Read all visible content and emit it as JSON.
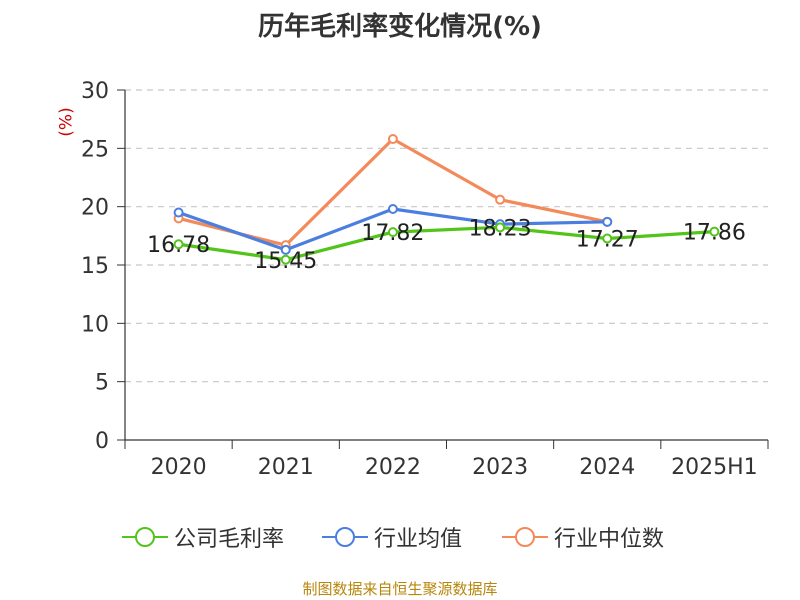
{
  "chart_data": {
    "type": "line",
    "title": "历年毛利率变化情况(%)",
    "unit": "(%)",
    "categories": [
      "2020",
      "2021",
      "2022",
      "2023",
      "2024",
      "2025H1"
    ],
    "ylim": [
      0,
      30
    ],
    "yticks": [
      0,
      5,
      10,
      15,
      20,
      25,
      30
    ],
    "grid": true,
    "legend_position": "bottom",
    "series": [
      {
        "name": "公司毛利率",
        "color": "#52c41a",
        "values": [
          16.78,
          15.45,
          17.82,
          18.23,
          17.27,
          17.86
        ],
        "labels": [
          "16.78",
          "15.45",
          "17.82",
          "18.23",
          "17.27",
          "17.86"
        ]
      },
      {
        "name": "行业均值",
        "color": "#4a7fe0",
        "values": [
          19.5,
          16.3,
          19.8,
          18.5,
          18.7,
          null
        ]
      },
      {
        "name": "行业中位数",
        "color": "#f4895a",
        "values": [
          19.0,
          16.7,
          25.8,
          20.6,
          18.7,
          null
        ]
      }
    ]
  },
  "source": "制图数据来自恒生聚源数据库"
}
